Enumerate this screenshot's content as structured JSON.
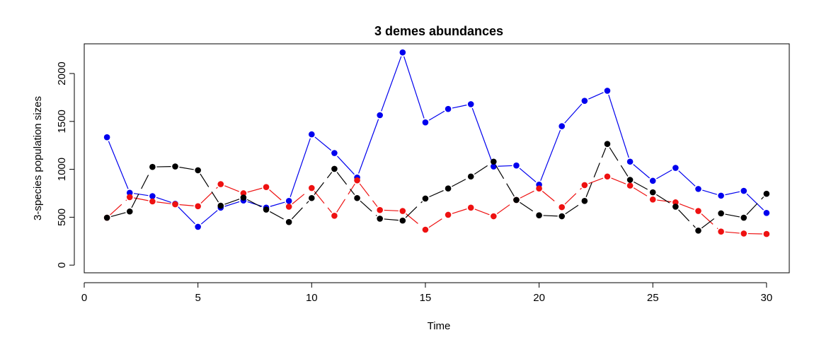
{
  "chart_data": {
    "type": "line",
    "title": "3 demes abundances",
    "xlabel": "Time",
    "ylabel": "3-species population sizes",
    "xlim": [
      0,
      31
    ],
    "ylim": [
      -80,
      2310
    ],
    "xticks": [
      0,
      5,
      10,
      15,
      20,
      25,
      30
    ],
    "yticks": [
      0,
      500,
      1000,
      1500,
      2000
    ],
    "grid": false,
    "x": [
      1,
      2,
      3,
      4,
      5,
      6,
      7,
      8,
      9,
      10,
      11,
      12,
      13,
      14,
      15,
      16,
      17,
      18,
      19,
      20,
      21,
      22,
      23,
      24,
      25,
      26,
      27,
      28,
      29,
      30
    ],
    "series": [
      {
        "color": "#0000ee",
        "dashed": false,
        "values": [
          1335,
          755,
          720,
          640,
          400,
          600,
          675,
          600,
          670,
          1365,
          1170,
          915,
          1565,
          2220,
          1490,
          1630,
          1680,
          1030,
          1040,
          840,
          1450,
          1715,
          1820,
          1080,
          880,
          1015,
          795,
          725,
          775,
          545
        ]
      },
      {
        "color": "#ee1111",
        "dashed": true,
        "values": [
          495,
          710,
          665,
          635,
          615,
          845,
          750,
          815,
          610,
          805,
          515,
          885,
          575,
          565,
          370,
          525,
          600,
          510,
          680,
          800,
          605,
          835,
          925,
          830,
          685,
          655,
          565,
          350,
          330,
          325
        ]
      },
      {
        "color": "#000000",
        "dashed": true,
        "values": [
          495,
          560,
          1025,
          1030,
          990,
          620,
          705,
          580,
          450,
          700,
          1005,
          700,
          485,
          465,
          695,
          800,
          925,
          1080,
          680,
          520,
          510,
          670,
          1265,
          890,
          760,
          610,
          360,
          540,
          495,
          745
        ]
      }
    ]
  }
}
